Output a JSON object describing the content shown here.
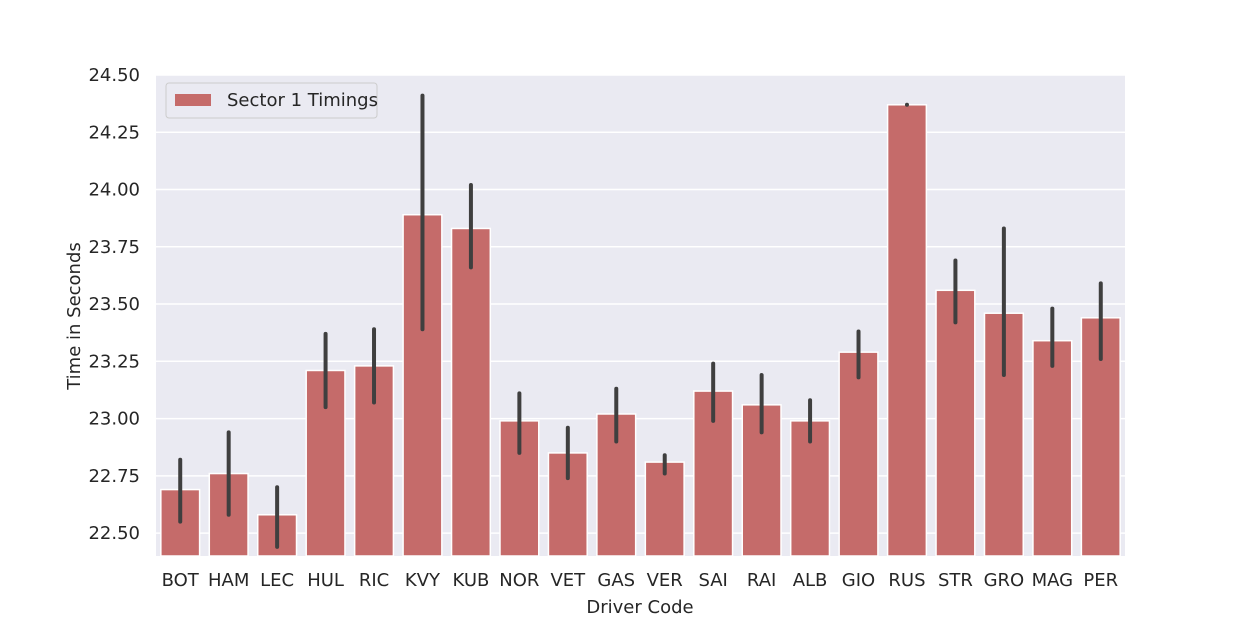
{
  "chart_data": {
    "type": "bar",
    "xlabel": "Driver Code",
    "ylabel": "Time in Seconds",
    "categories": [
      "BOT",
      "HAM",
      "LEC",
      "HUL",
      "RIC",
      "KVY",
      "KUB",
      "NOR",
      "VET",
      "GAS",
      "VER",
      "SAI",
      "RAI",
      "ALB",
      "GIO",
      "RUS",
      "STR",
      "GRO",
      "MAG",
      "PER"
    ],
    "series": [
      {
        "name": "Sector 1 Timings",
        "values": [
          22.69,
          22.76,
          22.58,
          23.21,
          23.23,
          23.89,
          23.83,
          22.99,
          22.85,
          23.02,
          22.81,
          23.12,
          23.06,
          22.99,
          23.29,
          24.37,
          23.56,
          23.46,
          23.34,
          23.44
        ],
        "error_low": [
          22.55,
          22.58,
          22.44,
          23.05,
          23.07,
          23.39,
          23.66,
          22.85,
          22.74,
          22.9,
          22.76,
          22.99,
          22.94,
          22.9,
          23.18,
          24.37,
          23.42,
          23.19,
          23.23,
          23.26
        ],
        "error_high": [
          22.82,
          22.94,
          22.7,
          23.37,
          23.39,
          24.41,
          24.02,
          23.11,
          22.96,
          23.13,
          22.84,
          23.24,
          23.19,
          23.08,
          23.38,
          24.37,
          23.69,
          23.83,
          23.48,
          23.59
        ]
      }
    ],
    "ylim": [
      22.4,
      24.5
    ],
    "yticks": [
      "22.50",
      "22.75",
      "23.00",
      "23.25",
      "23.50",
      "23.75",
      "24.00",
      "24.25",
      "24.50"
    ],
    "grid": true,
    "legend_position": "upper-left",
    "colors": {
      "bar": "#c56b6a",
      "error_bar": "#3f3f3f",
      "plot_background": "#eaeaf2",
      "grid": "#ffffff"
    }
  }
}
